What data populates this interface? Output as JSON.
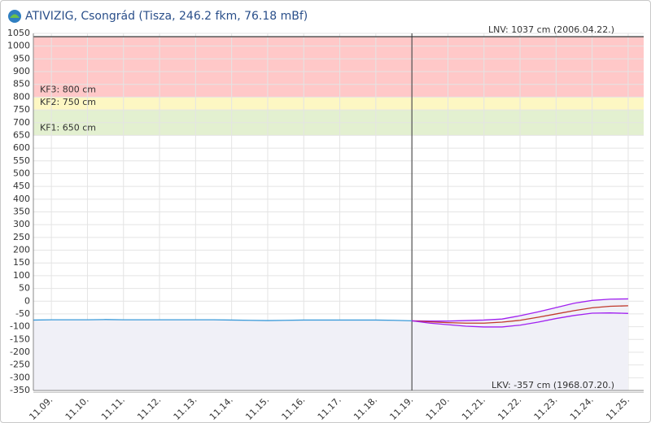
{
  "chart_data": {
    "type": "line",
    "title": "ATIVIZIG, Csongrád (Tisza, 246.2 fkm, 76.18 mBf)",
    "ylim": [
      -350,
      1050
    ],
    "yticks": [
      -350,
      -300,
      -250,
      -200,
      -150,
      -100,
      -50,
      0,
      50,
      100,
      150,
      200,
      250,
      300,
      350,
      400,
      450,
      500,
      550,
      600,
      650,
      700,
      750,
      800,
      850,
      900,
      950,
      1000,
      1050
    ],
    "xlim": [
      8.5,
      25.43
    ],
    "xticks": [
      {
        "value": 9,
        "label": "11.09."
      },
      {
        "value": 10,
        "label": "11.10."
      },
      {
        "value": 11,
        "label": "11.11."
      },
      {
        "value": 12,
        "label": "11.12."
      },
      {
        "value": 13,
        "label": "11.13."
      },
      {
        "value": 14,
        "label": "11.14."
      },
      {
        "value": 15,
        "label": "11.15."
      },
      {
        "value": 16,
        "label": "11.16."
      },
      {
        "value": 17,
        "label": "11.17."
      },
      {
        "value": 18,
        "label": "11.18."
      },
      {
        "value": 19,
        "label": "11.19."
      },
      {
        "value": 20,
        "label": "11.20."
      },
      {
        "value": 21,
        "label": "11.21."
      },
      {
        "value": 22,
        "label": "11.22."
      },
      {
        "value": 23,
        "label": "11.23."
      },
      {
        "value": 24,
        "label": "11.24."
      },
      {
        "value": 25,
        "label": "11.25."
      }
    ],
    "grid": true,
    "now_x": 19,
    "lnv": {
      "label": "LNV: 1037 cm (2006.04.22.)",
      "value": 1037
    },
    "lkv": {
      "label": "LKV: -357 cm (1968.07.20.)",
      "value": -357
    },
    "bands": [
      {
        "label": "KF3: 800 cm",
        "value": 800,
        "color": "#ffc8c8"
      },
      {
        "label": "KF2: 750 cm",
        "value": 750,
        "color": "#fdf7c3"
      },
      {
        "label": "KF1: 650 cm",
        "value": 650,
        "color": "#e3f0d0"
      }
    ],
    "series": [
      {
        "color": "#3a9ad9",
        "fill": "#f0f0f7",
        "x": [
          8.5,
          9,
          9.5,
          10,
          10.5,
          11,
          11.5,
          12,
          12.5,
          13,
          13.5,
          14,
          14.5,
          15,
          15.5,
          16,
          16.5,
          17,
          17.5,
          18,
          18.5,
          19
        ],
        "values": [
          -74,
          -73,
          -73,
          -73,
          -72,
          -73,
          -73,
          -73,
          -73,
          -73,
          -73,
          -74,
          -75,
          -76,
          -75,
          -74,
          -74,
          -74,
          -74,
          -74,
          -75,
          -77
        ]
      },
      {
        "color": "#a020f0",
        "fill": "#f0f0f7",
        "x": [
          19,
          19.5,
          20,
          20.5,
          21,
          21.5,
          22,
          22.5,
          23,
          23.5,
          24,
          24.5,
          25
        ],
        "values": [
          -77,
          -78,
          -78,
          -76,
          -74,
          -70,
          -57,
          -42,
          -25,
          -8,
          3,
          8,
          9
        ]
      },
      {
        "color": "#c0392b",
        "x": [
          19,
          19.5,
          20,
          20.5,
          21,
          21.5,
          22,
          22.5,
          23,
          23.5,
          24,
          24.5,
          25
        ],
        "values": [
          -77,
          -81,
          -84,
          -86,
          -86,
          -82,
          -75,
          -63,
          -50,
          -37,
          -26,
          -20,
          -18
        ]
      },
      {
        "color": "#a020f0",
        "x": [
          19,
          19.5,
          20,
          20.5,
          21,
          21.5,
          22,
          22.5,
          23,
          23.5,
          24,
          24.5,
          25
        ],
        "values": [
          -77,
          -86,
          -92,
          -98,
          -101,
          -101,
          -94,
          -82,
          -68,
          -56,
          -47,
          -46,
          -48
        ]
      }
    ]
  }
}
